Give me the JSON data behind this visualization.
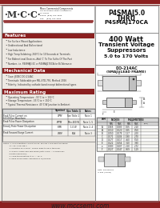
{
  "bg_color": "#ede9e3",
  "border_color": "#555555",
  "dark_red": "#8b2020",
  "light_gray": "#d8d8d8",
  "white": "#ffffff",
  "title_part": "P4SMAJ5.0\nTHRU\nP4SMAJ170CA",
  "subtitle_line1": "400 Watt",
  "subtitle_line2": "Transient Voltage",
  "subtitle_line3": "Suppressors",
  "subtitle_line4": "5.0 to 170 Volts",
  "package_title": "DO-214AC",
  "package_subtitle": "(SMAJ)(LEAD FRAME)",
  "features_title": "Features",
  "features": [
    "For Surface Mount Applications",
    "Unidirectional And Bidirectional",
    "Low Inductance",
    "High Temp Soldering: 260°C for 10 Seconds at Terminals",
    "For Bidirectional Devices, Add 'C' To The Suffix Of The Part",
    "Number, i.e. P4SMAJ5.0C or P4SMAJ170CA for Bi-Tolerance"
  ],
  "mech_title": "Mechanical Data",
  "mech": [
    "Case: JEDEC DO-214AC",
    "Terminals: Solderable per MIL-STD-750, Method 2026",
    "Polarity: Indicated by cathode band except bidirectional types"
  ],
  "rating_title": "Maximum Rating",
  "rating": [
    "Operating Temperature: -55°C to + 150°C",
    "Storage Temperature: -55°C to + 150°C",
    "Typical Thermal Resistance: 45°C/W Junction to Ambient"
  ],
  "table_col_headers": [
    "",
    "Symbol",
    "See Table 1",
    "Note 1"
  ],
  "table_rows": [
    [
      "Peak Pulse Current on\n10/1000μs Waveform",
      "IPPM",
      "See Table 1",
      "Note 1"
    ],
    [
      "Peak Pulse Power Dissipation",
      "PPPM",
      "Min 400 W",
      "Note 1, 5"
    ],
    [
      "Steady State Power Dissipation",
      "P(M)",
      "1.0 W",
      "Note 2, 4"
    ],
    [
      "Peak Forward Surge Current",
      "IFSM",
      "80A",
      "Note 3"
    ]
  ],
  "notes_text": [
    "Notes: 1. Non-repetitive current pulse, per Fig.1 and derated above",
    "          TA=25°C per Fig.4.",
    "          2. Mounted on 5.0mm² copper pads to each terminal.",
    "          3. 8.3ms, single half sine wave (duty cycle = 4 pulses per",
    "          Minute maximum).",
    "          4. Lead temperature at TL = 75°C.",
    "          5. Peak pulse power assumed is 10/1000μs."
  ],
  "website": "www.mccsemi.com",
  "company_name": "Micro Commercial Components",
  "company_addr1": "20736 Marilla Street Chatsworth,",
  "company_addr2": "CA 91311",
  "company_addr3": "Phone: (818) 701-4933",
  "company_addr4": "Fax:    (818) 701-4939",
  "dim_headers": [
    "DIM",
    "INCHES",
    "",
    "MILLIMETERS",
    ""
  ],
  "dim_subheaders": [
    "",
    "MIN",
    "MAX",
    "MIN",
    "MAX"
  ],
  "dim_rows": [
    [
      "A",
      "0.065",
      "0.083",
      "1.65",
      "2.10"
    ],
    [
      "A1",
      "0.010",
      "0.020",
      "0.25",
      "0.50"
    ],
    [
      "B",
      "0.050",
      "0.079",
      "1.27",
      "2.00"
    ],
    [
      "C",
      "0.071",
      "0.106",
      "1.80",
      "2.70"
    ],
    [
      "D",
      "0.177",
      "0.217",
      "4.50",
      "5.50"
    ],
    [
      "E",
      "0.122",
      "0.154",
      "3.10",
      "3.90"
    ],
    [
      "e",
      "0.083",
      "0.107",
      "2.10",
      "2.72"
    ],
    [
      "F",
      "0.027",
      "0.047",
      "0.69",
      "1.19"
    ]
  ]
}
